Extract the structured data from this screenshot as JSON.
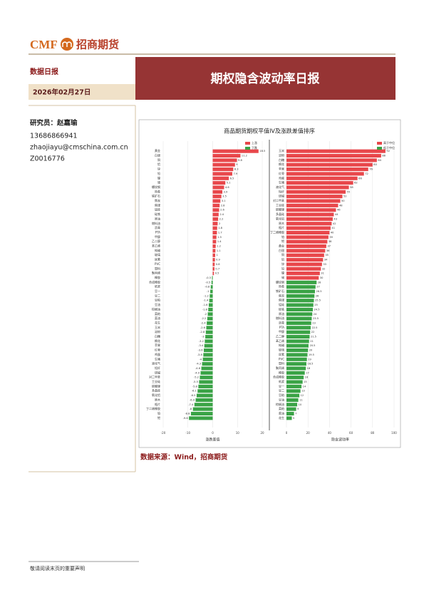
{
  "header": {
    "logo_text": "CMF",
    "logo_cn": "招商期货",
    "report_type": "数据日报",
    "date": "2026年02月27日",
    "title": "期权隐含波动率日报"
  },
  "analyst": {
    "label": "研究员：赵嘉瑜",
    "phone": "13686866941",
    "email": "zhaojiayu@cmschina.com.cn",
    "license": "Z0016776"
  },
  "source": "数据来源：Wind，招商期货",
  "footer": "敬请阅读末页的重要声明",
  "chart_data": [
    {
      "type": "bar",
      "title": "商品期货期权平值IV及涨跌差值排序",
      "x_label": "涨跌差值",
      "categories": [
        "黄金",
        "白银",
        "铜",
        "铝",
        "锌",
        "铅",
        "镍",
        "锡",
        "螺纹钢",
        "热卷",
        "铁矿石",
        "焦炭",
        "焦煤",
        "锰硅",
        "硅铁",
        "原油",
        "燃料油",
        "沥青",
        "PTA",
        "甲醇",
        "乙二醇",
        "苯乙烯",
        "纯碱",
        "玻璃",
        "尿素",
        "PVC",
        "塑料",
        "聚丙烯",
        "橡胶",
        "合成橡胶",
        "纸浆",
        "豆一",
        "豆二",
        "豆粕",
        "豆油",
        "棕榈油",
        "菜粕",
        "菜油",
        "花生",
        "玉米",
        "淀粉",
        "白糖",
        "棉花",
        "苹果",
        "红枣",
        "鸡蛋",
        "生猪",
        "液化气",
        "短纤",
        "烧碱",
        "对二甲苯",
        "工业硅",
        "碳酸锂",
        "多晶硅",
        "氧化铝",
        "原木",
        "瓶片",
        "丁二烯橡胶",
        "铂",
        "钯"
      ],
      "series": [
        {
          "name": "上涨",
          "color": "#e8474b",
          "values": [
            18.5,
            11.2,
            9.8,
            9.0,
            8.3,
            7.9,
            6.5,
            5.1,
            4.6,
            3.9,
            3.5,
            3.1,
            2.8,
            2.6,
            2.4,
            2.2,
            2.0,
            1.8,
            1.7,
            1.5,
            1.4,
            1.2,
            1.1,
            1.0,
            0.9,
            0.8,
            0.7,
            0.5,
            null,
            null,
            null,
            null,
            null,
            null,
            null,
            null,
            null,
            null,
            null,
            null,
            null,
            null,
            null,
            null,
            null,
            null,
            null,
            null,
            null,
            null,
            null,
            null,
            null,
            null,
            null,
            null,
            null,
            null,
            null,
            null
          ]
        },
        {
          "name": "下跌",
          "color": "#3aa346",
          "values": [
            null,
            null,
            null,
            null,
            null,
            null,
            null,
            null,
            null,
            null,
            null,
            null,
            null,
            null,
            null,
            null,
            null,
            null,
            null,
            null,
            null,
            null,
            null,
            null,
            null,
            null,
            null,
            null,
            -0.3,
            -0.5,
            -0.8,
            -1.0,
            -1.2,
            -1.4,
            -1.6,
            -1.8,
            -2.0,
            -2.2,
            -2.4,
            -2.6,
            -2.8,
            -3.0,
            -3.2,
            -3.4,
            -3.6,
            -3.8,
            -4.0,
            -4.3,
            -4.6,
            -4.9,
            -5.2,
            -5.5,
            -5.8,
            -6.1,
            -6.5,
            -6.9,
            -7.4,
            -8.0,
            -8.8,
            -9.6
          ]
        }
      ],
      "xlim": [
        -20,
        20
      ],
      "xticks": [
        -20,
        -10,
        0,
        10,
        20
      ],
      "grid": true,
      "legend": "top-right"
    },
    {
      "type": "bar",
      "x_label": "隐含波动率",
      "categories": [
        "玉米",
        "淀粉",
        "白糖",
        "棉花",
        "苹果",
        "红枣",
        "鸡蛋",
        "生猪",
        "液化气",
        "短纤",
        "烧碱",
        "对二甲苯",
        "工业硅",
        "碳酸锂",
        "多晶硅",
        "氧化铝",
        "原木",
        "瓶片",
        "丁二烯橡胶",
        "铂",
        "钯",
        "黄金",
        "白银",
        "铜",
        "铝",
        "锌",
        "铅",
        "镍",
        "锡",
        "螺纹钢",
        "热卷",
        "铁矿石",
        "焦炭",
        "焦煤",
        "锰硅",
        "硅铁",
        "原油",
        "燃料油",
        "沥青",
        "PTA",
        "甲醇",
        "乙二醇",
        "苯乙烯",
        "纯碱",
        "玻璃",
        "尿素",
        "PVC",
        "塑料",
        "聚丙烯",
        "橡胶",
        "合成橡胶",
        "纸浆",
        "豆一",
        "豆二",
        "豆粕",
        "豆油",
        "棕榈油",
        "菜粕",
        "菜油",
        "花生"
      ],
      "series": [
        {
          "name": "高于中位",
          "color": "#e8474b",
          "values": [
            92,
            88,
            84,
            80,
            76,
            72,
            66,
            62,
            58,
            55,
            52,
            50,
            48,
            46,
            44,
            43,
            42,
            41,
            40,
            39,
            38,
            37,
            36,
            35,
            34,
            33,
            32,
            31,
            30,
            null,
            null,
            null,
            null,
            null,
            null,
            null,
            null,
            null,
            null,
            null,
            null,
            null,
            null,
            null,
            null,
            null,
            null,
            null,
            null,
            null,
            null,
            null,
            null,
            null,
            null,
            null,
            null,
            null,
            null,
            null
          ]
        },
        {
          "name": "低于中位",
          "color": "#3aa346",
          "values": [
            null,
            null,
            null,
            null,
            null,
            null,
            null,
            null,
            null,
            null,
            null,
            null,
            null,
            null,
            null,
            null,
            null,
            null,
            null,
            null,
            null,
            null,
            null,
            null,
            null,
            null,
            null,
            null,
            null,
            28,
            27,
            26.5,
            26,
            25.5,
            25,
            24.5,
            24,
            23.5,
            23,
            22.5,
            22,
            21.5,
            21,
            20.5,
            20,
            19.5,
            19,
            18.5,
            18,
            17,
            16,
            15,
            14,
            13,
            12,
            11,
            10,
            9,
            7,
            5
          ]
        }
      ],
      "xlim": [
        0,
        100
      ],
      "xticks": [
        0,
        20,
        40,
        60,
        80,
        100
      ],
      "grid": true,
      "legend": "top-right"
    }
  ]
}
